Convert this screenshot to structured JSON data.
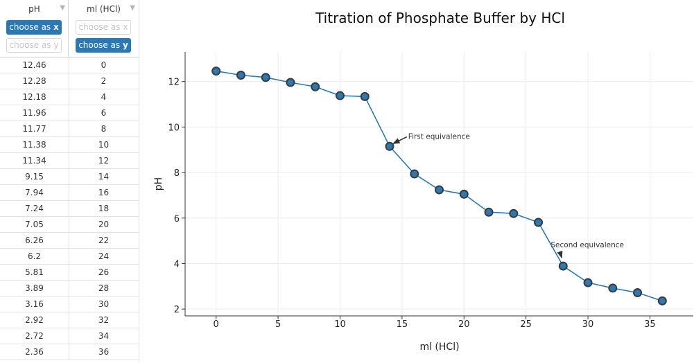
{
  "table": {
    "columns": [
      {
        "name": "pH",
        "x_label": "choose as",
        "x_key": "x",
        "y_label": "choose as",
        "y_key": "y",
        "selected": "x"
      },
      {
        "name": "ml (HCl)",
        "x_label": "choose as",
        "x_key": "x",
        "y_label": "choose as",
        "y_key": "y",
        "selected": "y"
      }
    ],
    "rows": [
      [
        "12.46",
        "0"
      ],
      [
        "12.28",
        "2"
      ],
      [
        "12.18",
        "4"
      ],
      [
        "11.96",
        "6"
      ],
      [
        "11.77",
        "8"
      ],
      [
        "11.38",
        "10"
      ],
      [
        "11.34",
        "12"
      ],
      [
        "9.15",
        "14"
      ],
      [
        "7.94",
        "16"
      ],
      [
        "7.24",
        "18"
      ],
      [
        "7.05",
        "20"
      ],
      [
        "6.26",
        "22"
      ],
      [
        "6.2",
        "24"
      ],
      [
        "5.81",
        "26"
      ],
      [
        "3.89",
        "28"
      ],
      [
        "3.16",
        "30"
      ],
      [
        "2.92",
        "32"
      ],
      [
        "2.72",
        "34"
      ],
      [
        "2.36",
        "36"
      ]
    ]
  },
  "colors": {
    "accent": "#2a78b4",
    "line": "#2a78b4",
    "marker_fill": "#2a78b4",
    "marker_edge": "#3a3a3a"
  },
  "chart_data": {
    "type": "line",
    "title": "Titration of Phosphate Buffer by HCl",
    "xlabel": "ml (HCl)",
    "ylabel": "pH",
    "xlim": [
      -2.5,
      38.5
    ],
    "ylim": [
      1.7,
      13.3
    ],
    "xticks": [
      0,
      5,
      10,
      15,
      20,
      25,
      30,
      35
    ],
    "yticks": [
      2,
      4,
      6,
      8,
      10,
      12
    ],
    "grid": true,
    "series": [
      {
        "name": "pH",
        "x": [
          0,
          2,
          4,
          6,
          8,
          10,
          12,
          14,
          16,
          18,
          20,
          22,
          24,
          26,
          28,
          30,
          32,
          34,
          36
        ],
        "y": [
          12.46,
          12.28,
          12.18,
          11.96,
          11.77,
          11.38,
          11.34,
          9.15,
          7.94,
          7.24,
          7.05,
          6.26,
          6.2,
          5.81,
          3.89,
          3.16,
          2.92,
          2.72,
          2.36
        ]
      }
    ],
    "annotations": [
      {
        "text": "First equivalence",
        "x": 14,
        "y": 9.15,
        "text_x": 15.5,
        "text_y": 9.6
      },
      {
        "text": "Second equivalence",
        "x": 28,
        "y": 3.89,
        "text_x": 27,
        "text_y": 4.8
      }
    ]
  }
}
